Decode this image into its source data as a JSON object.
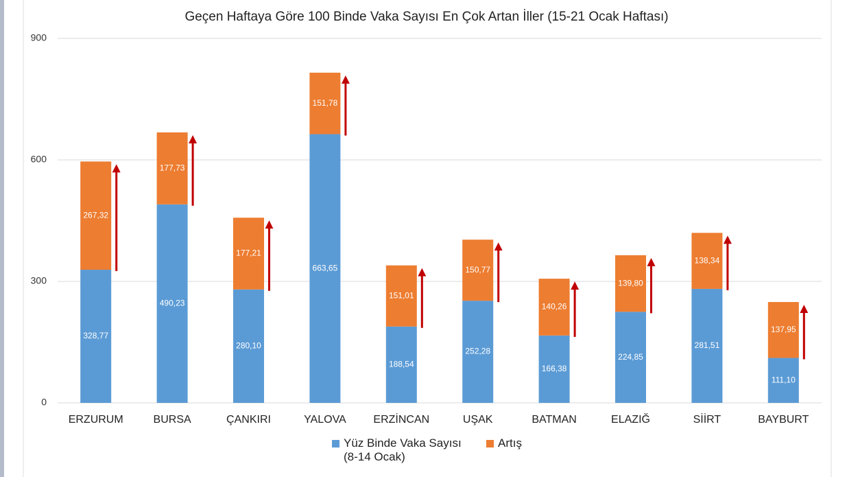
{
  "chart_data": {
    "type": "stacked_bar",
    "title": "Geçen Haftaya Göre 100 Binde Vaka Sayısı En Çok Artan İller (15-21 Ocak Haftası)",
    "categories": [
      "ERZURUM",
      "BURSA",
      "ÇANKIRI",
      "YALOVA",
      "ERZİNCAN",
      "UŞAK",
      "BATMAN",
      "ELAZIĞ",
      "SİİRT",
      "BAYBURT"
    ],
    "series": [
      {
        "name": "Yüz Binde Vaka Sayısı (8-14 Ocak)",
        "color": "#5b9bd5",
        "values": [
          328.77,
          490.23,
          280.1,
          663.65,
          188.54,
          252.28,
          166.38,
          224.85,
          281.51,
          111.1
        ],
        "value_labels": [
          "328,77",
          "490,23",
          "280,10",
          "663,65",
          "188,54",
          "252,28",
          "166,38",
          "224,85",
          "281,51",
          "111,10"
        ]
      },
      {
        "name": "Artış",
        "color": "#ed7d31",
        "values": [
          267.32,
          177.73,
          177.21,
          151.78,
          151.01,
          150.77,
          140.26,
          139.8,
          138.34,
          137.95
        ],
        "value_labels": [
          "267,32",
          "177,73",
          "177,21",
          "151,78",
          "151,01",
          "150,77",
          "140,26",
          "139,80",
          "138,34",
          "137,95"
        ]
      }
    ],
    "ylim": [
      0,
      900
    ],
    "yticks": [
      0,
      300,
      600,
      900
    ],
    "grid": true,
    "arrow_color": "#c00000"
  }
}
